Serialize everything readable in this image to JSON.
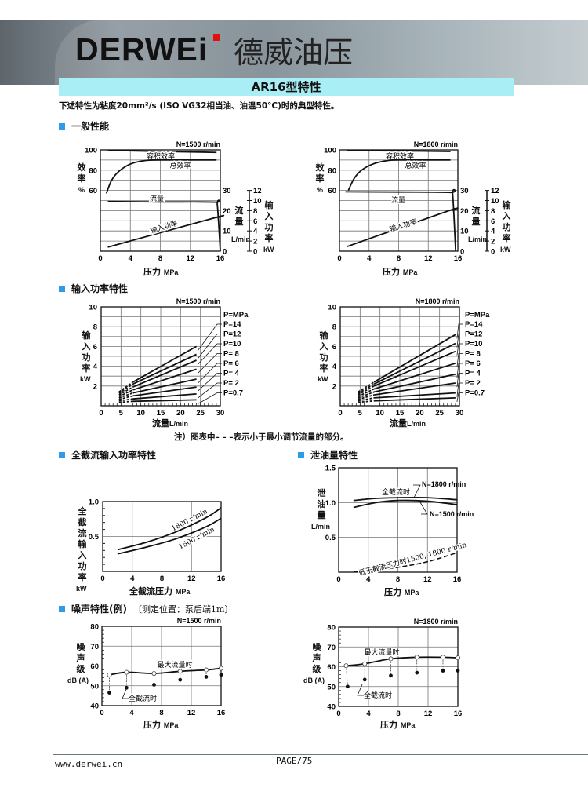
{
  "header": {
    "logo": "DERWEi",
    "brand_cn": "德威油压"
  },
  "title": "AR16型特性",
  "subtitle": "下述特性为粘度20mm²/s (ISO VG32相当油、油温50°C)时的典型特性。",
  "sections": {
    "general": "一般性能",
    "input_power": "输入功率特性",
    "full_cutoff": "全截流输入功率特性",
    "leakage": "泄油量特性",
    "noise": "噪声特性(例)",
    "noise_note": "〔测定位置：泵后端1m〕"
  },
  "note": "注）图表中– – –表示小于最小调节流量的部分。",
  "footer": {
    "url": "www.derwei.cn",
    "page": "PAGE/75"
  },
  "labels": {
    "efficiency": "效率",
    "percent": "%",
    "flow": "流量",
    "lmin": "L/min",
    "input_power": "输入功率",
    "kw": "kW",
    "pressure": "压力",
    "mpa": "MPa",
    "flow_x": "流量",
    "full_cutoff_power": "全截流输入功率",
    "full_cutoff_pressure": "全截流压力",
    "leakage": "泄油量",
    "noise_level": "噪声级",
    "dba": "dB (A)"
  },
  "charts": {
    "perf1500": {
      "rpm": "N=1500 r/min",
      "x_ticks": [
        0,
        4,
        8,
        12,
        16
      ],
      "eff_ticks": [
        60,
        80,
        100
      ],
      "flow_ticks": [
        0,
        10,
        20,
        30
      ],
      "power_ticks": [
        0,
        2,
        4,
        6,
        8,
        10,
        12
      ],
      "series": [
        {
          "name": "容积效率",
          "axis": "eff",
          "points": [
            [
              1,
              99.5
            ],
            [
              8,
              98.5
            ],
            [
              15.5,
              97.5
            ]
          ]
        },
        {
          "name": "总效率",
          "axis": "eff",
          "points": [
            [
              0.8,
              57
            ],
            [
              1.5,
              70
            ],
            [
              2.5,
              79
            ],
            [
              4,
              86
            ],
            [
              6,
              89.5
            ],
            [
              8,
              90
            ],
            [
              15.5,
              90
            ]
          ]
        },
        {
          "name": "流量",
          "axis": "flow",
          "points": [
            [
              1,
              24.5
            ],
            [
              8,
              24.3
            ],
            [
              15.3,
              24.2
            ],
            [
              15.6,
              23
            ],
            [
              16,
              0
            ]
          ]
        },
        {
          "name": "输入功率",
          "axis": "power",
          "points": [
            [
              1,
              0.8
            ],
            [
              15.3,
              6.6
            ],
            [
              15.6,
              6.6
            ]
          ]
        }
      ]
    },
    "perf1800": {
      "rpm": "N=1800 r/min",
      "x_ticks": [
        0,
        4,
        8,
        12,
        16
      ],
      "eff_ticks": [
        60,
        80,
        100
      ],
      "flow_ticks": [
        0,
        10,
        20,
        30
      ],
      "power_ticks": [
        0,
        2,
        4,
        6,
        8,
        10,
        12
      ],
      "series": [
        {
          "name": "容积效率",
          "axis": "eff",
          "points": [
            [
              1,
              99.5
            ],
            [
              8,
              99
            ],
            [
              15,
              98.5
            ]
          ]
        },
        {
          "name": "总效率",
          "axis": "eff",
          "points": [
            [
              1.2,
              60
            ],
            [
              2,
              72
            ],
            [
              3,
              80
            ],
            [
              4.5,
              86
            ],
            [
              6.5,
              89.5
            ],
            [
              8,
              90
            ],
            [
              15,
              90
            ]
          ]
        },
        {
          "name": "流量",
          "axis": "flow",
          "points": [
            [
              0.8,
              29.3
            ],
            [
              8,
              29.2
            ],
            [
              15,
              29
            ],
            [
              15.3,
              28
            ],
            [
              15.7,
              0
            ]
          ]
        },
        {
          "name": "输入功率",
          "axis": "power",
          "points": [
            [
              1,
              0.9
            ],
            [
              14.8,
              8
            ],
            [
              15.3,
              8
            ]
          ]
        }
      ]
    },
    "power1500": {
      "rpm": "N=1500 r/min",
      "x_ticks": [
        0,
        5,
        10,
        15,
        20,
        25,
        30
      ],
      "y_ticks": [
        2,
        4,
        6,
        8,
        10
      ],
      "legend_header": "P=MPa",
      "series": [
        {
          "label": "P=14",
          "dashed": [
            [
              4.5,
              1.4
            ],
            [
              8,
              2.4
            ]
          ],
          "solid": [
            [
              8,
              2.4
            ],
            [
              24,
              6.0
            ]
          ]
        },
        {
          "label": "P=12",
          "dashed": [
            [
              4.5,
              1.25
            ],
            [
              8,
              2.2
            ]
          ],
          "solid": [
            [
              8,
              2.2
            ],
            [
              24,
              5.2
            ]
          ]
        },
        {
          "label": "P=10",
          "dashed": [
            [
              4.5,
              1.1
            ],
            [
              8,
              1.9
            ]
          ],
          "solid": [
            [
              8,
              1.9
            ],
            [
              24,
              4.6
            ]
          ]
        },
        {
          "label": "P=  8",
          "dashed": [
            [
              4.5,
              0.95
            ],
            [
              8,
              1.6
            ]
          ],
          "solid": [
            [
              8,
              1.6
            ],
            [
              24,
              3.7
            ]
          ]
        },
        {
          "label": "P=  6",
          "dashed": [
            [
              4.5,
              0.8
            ],
            [
              8,
              1.3
            ]
          ],
          "solid": [
            [
              8,
              1.3
            ],
            [
              24,
              2.7
            ]
          ]
        },
        {
          "label": "P=  4",
          "dashed": [
            [
              4.5,
              0.65
            ],
            [
              8,
              1.0
            ]
          ],
          "solid": [
            [
              8,
              1.0
            ],
            [
              24,
              1.9
            ]
          ]
        },
        {
          "label": "P=  2",
          "dashed": [
            [
              4.5,
              0.5
            ],
            [
              8,
              0.7
            ]
          ],
          "solid": [
            [
              8,
              0.7
            ],
            [
              24,
              1.2
            ]
          ]
        },
        {
          "label": "P=0.7",
          "dashed": [
            [
              4.5,
              0.35
            ],
            [
              8,
              0.45
            ]
          ],
          "solid": [
            [
              8,
              0.45
            ],
            [
              24,
              0.6
            ]
          ]
        }
      ]
    },
    "power1800": {
      "rpm": "N=1800 r/min",
      "x_ticks": [
        0,
        5,
        10,
        15,
        20,
        25,
        30
      ],
      "y_ticks": [
        2,
        4,
        6,
        8,
        10
      ],
      "legend_header": "P=MPa",
      "series": [
        {
          "label": "P=14",
          "dashed": [
            [
              4.5,
              1.4
            ],
            [
              8.5,
              2.4
            ]
          ],
          "solid": [
            [
              8.5,
              2.4
            ],
            [
              29,
              7.2
            ]
          ]
        },
        {
          "label": "P=12",
          "dashed": [
            [
              4.5,
              1.25
            ],
            [
              8.5,
              2.2
            ]
          ],
          "solid": [
            [
              8.5,
              2.2
            ],
            [
              29,
              6.3
            ]
          ]
        },
        {
          "label": "P=10",
          "dashed": [
            [
              4.5,
              1.1
            ],
            [
              8.5,
              2.0
            ]
          ],
          "solid": [
            [
              8.5,
              2.0
            ],
            [
              29,
              5.5
            ]
          ]
        },
        {
          "label": "P=  8",
          "dashed": [
            [
              4.5,
              0.95
            ],
            [
              8.5,
              1.7
            ]
          ],
          "solid": [
            [
              8.5,
              1.7
            ],
            [
              29,
              4.3
            ]
          ]
        },
        {
          "label": "P=  6",
          "dashed": [
            [
              4.5,
              0.8
            ],
            [
              8.5,
              1.4
            ]
          ],
          "solid": [
            [
              8.5,
              1.4
            ],
            [
              29,
              3.2
            ]
          ]
        },
        {
          "label": "P=  4",
          "dashed": [
            [
              4.5,
              0.65
            ],
            [
              8.5,
              1.1
            ]
          ],
          "solid": [
            [
              8.5,
              1.1
            ],
            [
              29,
              2.3
            ]
          ]
        },
        {
          "label": "P=  2",
          "dashed": [
            [
              4.5,
              0.5
            ],
            [
              8.5,
              0.8
            ]
          ],
          "solid": [
            [
              8.5,
              0.8
            ],
            [
              29,
              1.3
            ]
          ]
        },
        {
          "label": "P=0.7",
          "dashed": [
            [
              4.5,
              0.35
            ],
            [
              8.5,
              0.5
            ]
          ],
          "solid": [
            [
              8.5,
              0.5
            ],
            [
              29,
              0.8
            ]
          ]
        }
      ]
    },
    "fullcutoff": {
      "x_ticks": [
        0,
        4,
        8,
        12,
        16
      ],
      "y_ticks": [
        0.5,
        1.0
      ],
      "y_tick_labels": [
        "0.5",
        "1.0"
      ],
      "series": [
        {
          "name": "1800 r/min",
          "points": [
            [
              2,
              0.31
            ],
            [
              6,
              0.42
            ],
            [
              10,
              0.57
            ],
            [
              14,
              0.77
            ],
            [
              16,
              0.91
            ]
          ]
        },
        {
          "name": "1500 r/min",
          "points": [
            [
              2,
              0.25
            ],
            [
              6,
              0.35
            ],
            [
              10,
              0.47
            ],
            [
              14,
              0.64
            ],
            [
              16,
              0.76
            ]
          ]
        }
      ]
    },
    "leakage": {
      "x_ticks": [
        0,
        4,
        8,
        12,
        16
      ],
      "y_ticks": [
        0.5,
        1.0,
        1.5
      ],
      "y_tick_labels": [
        "0.5",
        "1.0",
        "1.5"
      ],
      "full_cutoff_label": "全截流时",
      "low_label": "低于截流压力时1500, 1800 r/min",
      "series": [
        {
          "name": "N=1800 r/min",
          "points": [
            [
              2,
              1.03
            ],
            [
              5,
              1.06
            ],
            [
              8,
              1.07
            ],
            [
              12,
              1.07
            ],
            [
              16,
              1.04
            ]
          ]
        },
        {
          "name": "N=1500 r/min",
          "points": [
            [
              2,
              0.93
            ],
            [
              5,
              1.0
            ],
            [
              8,
              1.03
            ],
            [
              12,
              1.02
            ],
            [
              16,
              0.97
            ]
          ]
        },
        {
          "name": "低于截流压力",
          "dashed": true,
          "points": [
            [
              2,
              0.01
            ],
            [
              5,
              0.03
            ],
            [
              8,
              0.07
            ],
            [
              12,
              0.15
            ],
            [
              16,
              0.28
            ]
          ]
        }
      ]
    },
    "noise1500": {
      "rpm": "N=1500 r/min",
      "x_ticks": [
        0,
        4,
        8,
        12,
        16
      ],
      "y_ticks": [
        40,
        50,
        60,
        70,
        80
      ],
      "max_flow_label": "最大流量时",
      "cutoff_label": "全截流时",
      "max_flow": [
        [
          1,
          55.5
        ],
        [
          3.3,
          56.8
        ],
        [
          7,
          56.2
        ],
        [
          10.5,
          57.3
        ],
        [
          14,
          58
        ],
        [
          16,
          58.8
        ]
      ],
      "cutoff": [
        [
          1,
          46.5
        ],
        [
          3.3,
          49
        ],
        [
          7,
          50.5
        ],
        [
          10.5,
          53
        ],
        [
          14,
          54.5
        ],
        [
          16,
          55.5
        ]
      ]
    },
    "noise1800": {
      "rpm": "N=1800 r/min",
      "x_ticks": [
        0,
        4,
        8,
        12,
        16
      ],
      "y_ticks": [
        40,
        50,
        60,
        70,
        80
      ],
      "max_flow_label": "最大流量时",
      "cutoff_label": "全截流时",
      "max_flow": [
        [
          1,
          60.5
        ],
        [
          3.5,
          61.5
        ],
        [
          7,
          64
        ],
        [
          10.5,
          64.8
        ],
        [
          14,
          64.8
        ],
        [
          16,
          64.5
        ]
      ],
      "cutoff": [
        [
          1.2,
          50
        ],
        [
          3.5,
          53.5
        ],
        [
          7,
          55.5
        ],
        [
          10.5,
          57
        ],
        [
          14,
          58
        ],
        [
          16,
          58
        ]
      ]
    }
  }
}
